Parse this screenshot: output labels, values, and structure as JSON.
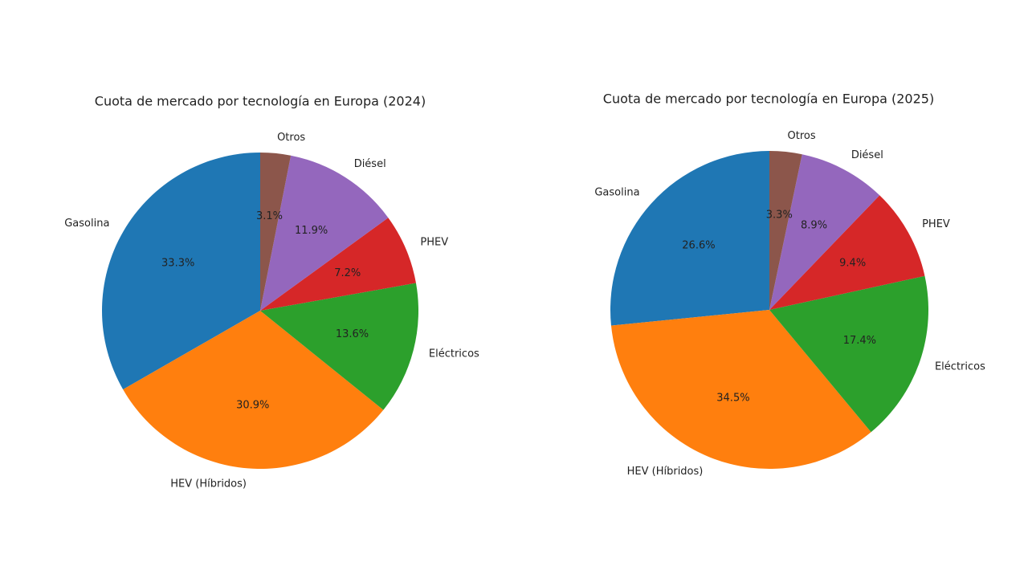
{
  "chart_data": [
    {
      "type": "pie",
      "title": "Cuota de mercado por tecnología en Europa (2024)",
      "categories": [
        "Gasolina",
        "HEV (Híbridos)",
        "Eléctricos",
        "PHEV",
        "Diésel",
        "Otros"
      ],
      "values": [
        33.3,
        30.9,
        13.6,
        7.2,
        11.9,
        3.1
      ],
      "value_labels": [
        "33.3%",
        "30.9%",
        "13.6%",
        "7.2%",
        "11.9%",
        "3.1%"
      ],
      "colors": [
        "#1f77b4",
        "#ff7f0e",
        "#2ca02c",
        "#d62728",
        "#9467bd",
        "#8c564b"
      ]
    },
    {
      "type": "pie",
      "title": "Cuota de mercado por tecnología en Europa (2025)",
      "categories": [
        "Gasolina",
        "HEV (Híbridos)",
        "Eléctricos",
        "PHEV",
        "Diésel",
        "Otros"
      ],
      "values": [
        26.6,
        34.5,
        17.4,
        9.4,
        8.9,
        3.3
      ],
      "value_labels": [
        "26.6%",
        "34.5%",
        "17.4%",
        "9.4%",
        "8.9%",
        "3.3%"
      ],
      "colors": [
        "#1f77b4",
        "#ff7f0e",
        "#2ca02c",
        "#d62728",
        "#9467bd",
        "#8c564b"
      ]
    }
  ]
}
